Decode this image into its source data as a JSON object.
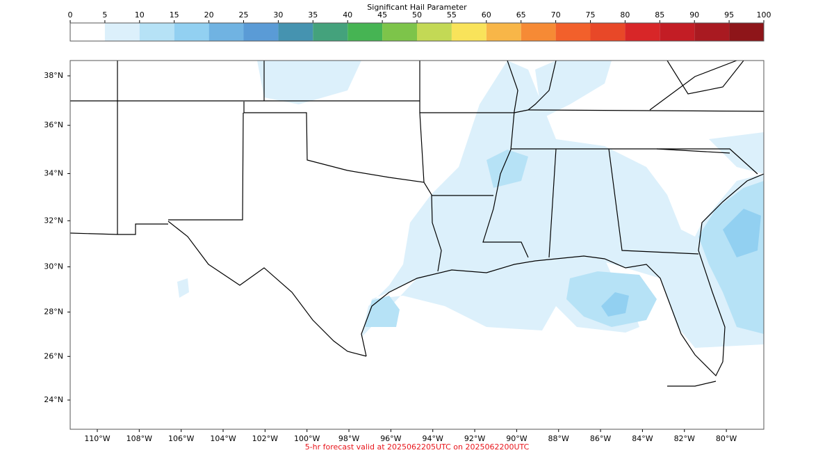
{
  "colorbar": {
    "title": "Significant Hail Parameter",
    "ticks": [
      0,
      5,
      10,
      15,
      20,
      25,
      30,
      35,
      40,
      45,
      50,
      55,
      60,
      65,
      70,
      75,
      80,
      85,
      90,
      95,
      100
    ],
    "colors": [
      "#ffffff",
      "#dcf0fb",
      "#b6e2f6",
      "#92d0f1",
      "#70b3e2",
      "#5a9bd6",
      "#4593b0",
      "#44a27c",
      "#46b453",
      "#7dc44a",
      "#c3d955",
      "#f9e35a",
      "#f8b648",
      "#f68a35",
      "#f2602b",
      "#e84828",
      "#d82628",
      "#c31d25",
      "#a91a21",
      "#8e1519"
    ]
  },
  "map": {
    "lat_labels": [
      {
        "value": 38,
        "label": "38°N"
      },
      {
        "value": 36,
        "label": "36°N"
      },
      {
        "value": 34,
        "label": "34°N"
      },
      {
        "value": 32,
        "label": "32°N"
      },
      {
        "value": 30,
        "label": "30°N"
      },
      {
        "value": 28,
        "label": "28°N"
      },
      {
        "value": 26,
        "label": "26°N"
      },
      {
        "value": 24,
        "label": "24°N"
      }
    ],
    "lon_labels": [
      {
        "value": -110,
        "label": "110°W"
      },
      {
        "value": -108,
        "label": "108°W"
      },
      {
        "value": -106,
        "label": "106°W"
      },
      {
        "value": -104,
        "label": "104°W"
      },
      {
        "value": -102,
        "label": "102°W"
      },
      {
        "value": -100,
        "label": "100°W"
      },
      {
        "value": -98,
        "label": "98°W"
      },
      {
        "value": -96,
        "label": "96°W"
      },
      {
        "value": -94,
        "label": "94°W"
      },
      {
        "value": -92,
        "label": "92°W"
      },
      {
        "value": -90,
        "label": "90°W"
      },
      {
        "value": -88,
        "label": "88°W"
      },
      {
        "value": -86,
        "label": "86°W"
      },
      {
        "value": -84,
        "label": "84°W"
      },
      {
        "value": -82,
        "label": "82°W"
      },
      {
        "value": -80,
        "label": "80°W"
      }
    ]
  },
  "footer": "5-hr forecast valid at 2025062205UTC on 2025062200UTC"
}
